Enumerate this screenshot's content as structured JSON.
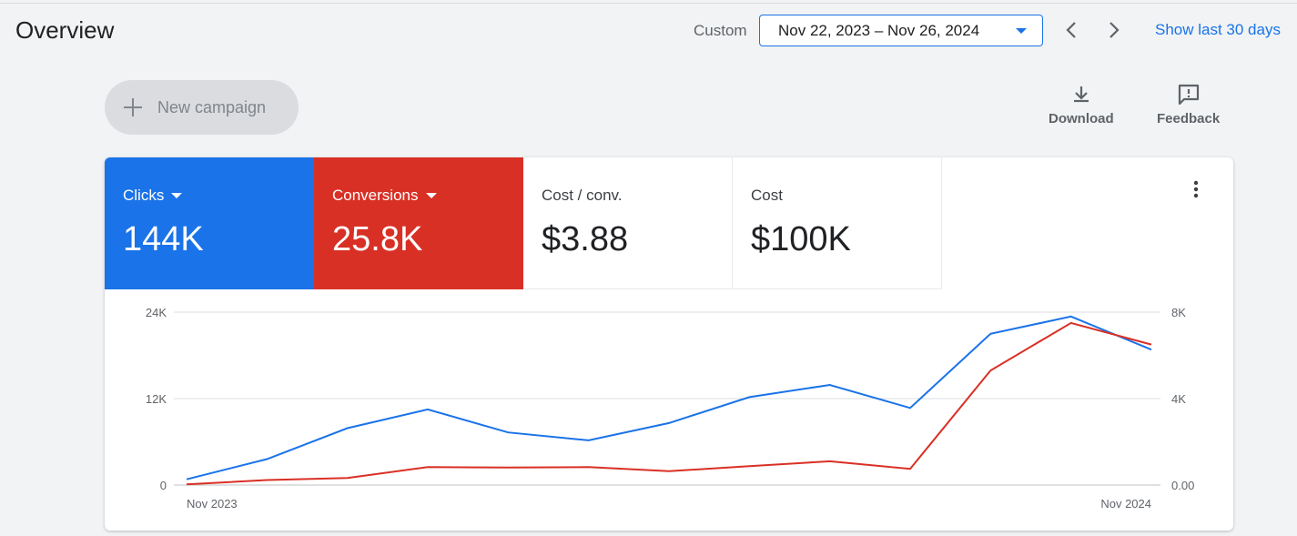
{
  "header": {
    "title": "Overview",
    "range_label": "Custom",
    "date_range": "Nov 22, 2023 – Nov 26, 2024",
    "show_last": "Show last 30 days"
  },
  "toolbar": {
    "new_campaign": "New campaign",
    "download": "Download",
    "feedback": "Feedback"
  },
  "metrics": [
    {
      "label": "Clicks",
      "value": "144K",
      "color": "#1a73e8",
      "selected": true
    },
    {
      "label": "Conversions",
      "value": "25.8K",
      "color": "#d93025",
      "selected": true
    },
    {
      "label": "Cost / conv.",
      "value": "$3.88"
    },
    {
      "label": "Cost",
      "value": "$100K"
    }
  ],
  "chart_data": {
    "type": "line",
    "x_tick_labels": [
      "Nov 2023",
      "Nov 2024"
    ],
    "y_left_ticks": [
      "0",
      "12K",
      "24K"
    ],
    "y_right_ticks": [
      "0.00",
      "4K",
      "8K"
    ],
    "ylim_left": [
      0,
      24000
    ],
    "ylim_right": [
      0,
      8000
    ],
    "grid": true,
    "series": [
      {
        "name": "Clicks",
        "axis": "left",
        "color": "#1a73e8",
        "values": [
          800,
          3600,
          7900,
          10500,
          7300,
          6200,
          8600,
          12200,
          13900,
          10700,
          21000,
          23400,
          18800
        ]
      },
      {
        "name": "Conversions",
        "axis": "right",
        "color": "#d93025",
        "values": [
          30,
          230,
          330,
          830,
          810,
          830,
          640,
          870,
          1100,
          750,
          5300,
          7500,
          6500
        ]
      }
    ]
  }
}
